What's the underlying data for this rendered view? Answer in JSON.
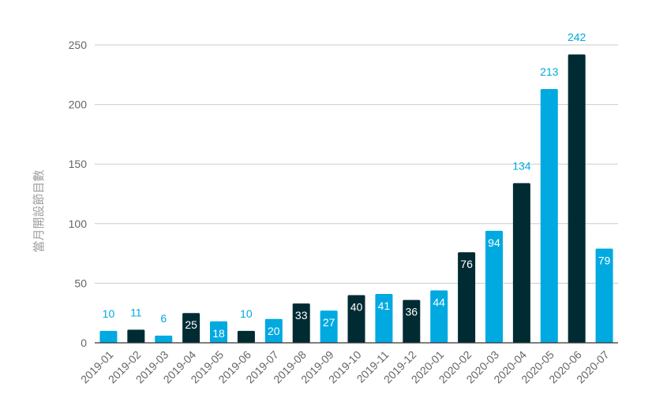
{
  "chart_data": {
    "type": "bar",
    "ylabel": "當月開設節目數",
    "xlabel": "",
    "ylim": [
      0,
      250
    ],
    "yticks": [
      0,
      50,
      100,
      150,
      200,
      250
    ],
    "grid": true,
    "colors": {
      "light": "#00a9e0",
      "dark": "#002b33",
      "grid": "#cccccc",
      "axis": "#333333",
      "tick_text": "#666666",
      "inside_label": "#ffffff"
    },
    "categories": [
      "2019-01",
      "2019-02",
      "2019-03",
      "2019-04",
      "2019-05",
      "2019-06",
      "2019-07",
      "2019-08",
      "2019-09",
      "2019-10",
      "2019-11",
      "2019-12",
      "2020-01",
      "2020-02",
      "2020-03",
      "2020-04",
      "2020-05",
      "2020-06",
      "2020-07"
    ],
    "values": [
      10,
      11,
      6,
      25,
      18,
      10,
      20,
      33,
      27,
      40,
      41,
      36,
      44,
      76,
      94,
      134,
      213,
      242,
      79
    ],
    "value_labels": [
      "10",
      "11",
      "6",
      "25",
      "18",
      "10",
      "20",
      "33",
      "27",
      "40",
      "41",
      "36",
      "44",
      "76",
      "94",
      "134",
      "213",
      "242",
      "79"
    ],
    "bar_colors": [
      "light",
      "dark",
      "light",
      "dark",
      "light",
      "dark",
      "light",
      "dark",
      "light",
      "dark",
      "light",
      "dark",
      "light",
      "dark",
      "light",
      "dark",
      "light",
      "dark",
      "light"
    ],
    "label_positions": [
      "above",
      "above",
      "above",
      "inside",
      "inside",
      "above",
      "inside",
      "inside",
      "inside",
      "inside",
      "inside",
      "inside",
      "inside",
      "inside",
      "inside",
      "above",
      "above",
      "above",
      "inside"
    ]
  }
}
